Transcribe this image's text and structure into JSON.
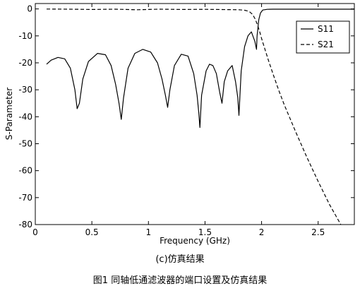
{
  "chart_data": {
    "type": "line",
    "xlabel": "Frequency (GHz)",
    "ylabel": "S-Parameter",
    "xlim": [
      0,
      2.82
    ],
    "ylim": [
      -80,
      2
    ],
    "xticks": [
      0,
      0.5,
      1,
      1.5,
      2,
      2.5
    ],
    "xtick_labels": [
      "0",
      "0.5",
      "1",
      "1.5",
      "2",
      "2.5"
    ],
    "yticks": [
      0,
      -10,
      -20,
      -30,
      -40,
      -50,
      -60,
      -70,
      -80
    ],
    "ytick_labels": [
      "0",
      "-10",
      "-20",
      "-30",
      "-40",
      "-50",
      "-60",
      "-70",
      "-80"
    ],
    "grid": false,
    "legend_position": "top-right",
    "series": [
      {
        "name": "S11",
        "style": "solid",
        "x": [
          0.1,
          0.14,
          0.2,
          0.26,
          0.31,
          0.35,
          0.37,
          0.39,
          0.42,
          0.47,
          0.55,
          0.62,
          0.67,
          0.71,
          0.74,
          0.76,
          0.78,
          0.82,
          0.88,
          0.95,
          1.02,
          1.08,
          1.12,
          1.15,
          1.17,
          1.19,
          1.23,
          1.29,
          1.35,
          1.4,
          1.43,
          1.445,
          1.455,
          1.47,
          1.51,
          1.54,
          1.57,
          1.6,
          1.63,
          1.65,
          1.67,
          1.7,
          1.74,
          1.77,
          1.79,
          1.8,
          1.82,
          1.85,
          1.88,
          1.91,
          1.94,
          1.955,
          1.96,
          1.975,
          1.99,
          2.01,
          2.05,
          2.1,
          2.2,
          2.3,
          2.45,
          2.6,
          2.82
        ],
        "values": [
          -20.5,
          -19,
          -18,
          -18.5,
          -22,
          -30,
          -37,
          -35,
          -26,
          -19.5,
          -16.5,
          -17,
          -21,
          -28,
          -35,
          -41,
          -33,
          -22,
          -16.5,
          -15,
          -16,
          -20,
          -26,
          -32,
          -36.5,
          -30,
          -21,
          -16.8,
          -17.5,
          -24,
          -32,
          -38.5,
          -44,
          -32,
          -23,
          -20.5,
          -21,
          -24,
          -31,
          -35,
          -27,
          -23,
          -21,
          -27,
          -33,
          -39.5,
          -23,
          -14,
          -10,
          -8.5,
          -12,
          -15,
          -10,
          -4,
          -1.5,
          -0.4,
          -0.15,
          -0.1,
          -0.1,
          -0.1,
          -0.1,
          -0.1,
          -0.1
        ]
      },
      {
        "name": "S21",
        "style": "dashed",
        "x": [
          0.1,
          0.3,
          0.5,
          0.7,
          0.9,
          1.1,
          1.3,
          1.5,
          1.7,
          1.8,
          1.85,
          1.89,
          1.92,
          1.94,
          1.96,
          1.98,
          2.0,
          2.03,
          2.06,
          2.1,
          2.15,
          2.2,
          2.3,
          2.4,
          2.5,
          2.6,
          2.7
        ],
        "values": [
          -0.05,
          -0.1,
          -0.2,
          -0.1,
          -0.3,
          -0.1,
          -0.2,
          -0.15,
          -0.25,
          -0.3,
          -0.5,
          -0.9,
          -2,
          -3.5,
          -5.5,
          -8,
          -11,
          -15,
          -19,
          -24,
          -30,
          -35.5,
          -45.5,
          -55,
          -64,
          -72.5,
          -80
        ]
      }
    ]
  },
  "captions": {
    "sub": "(c)仿真结果",
    "main": "图1 同轴低通滤波器的端口设置及仿真结果"
  }
}
